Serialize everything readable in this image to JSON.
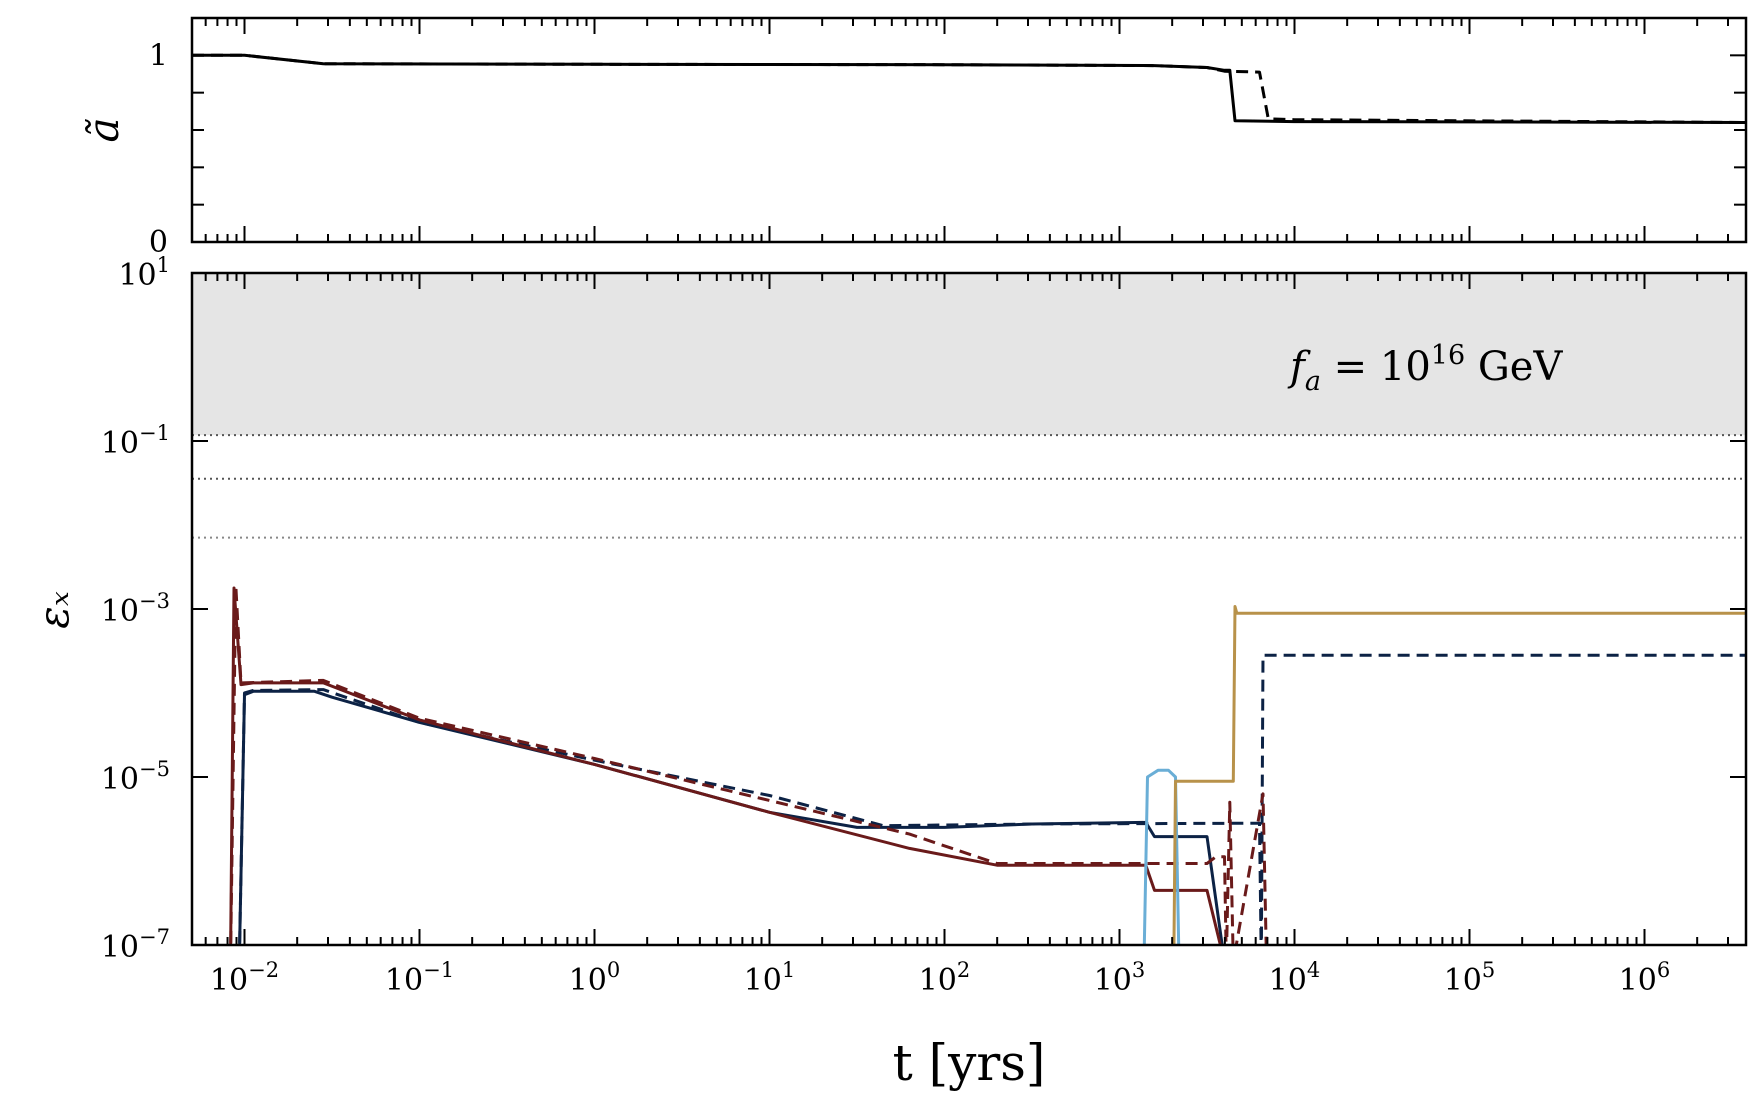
{
  "chart_data": [
    {
      "id": "top",
      "type": "line",
      "ylabel": "ã",
      "xscale": "log",
      "xlim_exp": [
        -2.3,
        6.58
      ],
      "ylim": [
        0,
        1.2
      ],
      "yticks": [
        {
          "value": 0,
          "label": "0"
        },
        {
          "value": 1,
          "label": "1"
        }
      ],
      "series": [
        {
          "name": "a-solid",
          "color": "#000000",
          "dash": "solid",
          "points": [
            [
              -2.3,
              1.0
            ],
            [
              -2.0,
              1.0
            ],
            [
              -1.55,
              0.955
            ],
            [
              0,
              0.952
            ],
            [
              2,
              0.95
            ],
            [
              3.2,
              0.945
            ],
            [
              3.5,
              0.935
            ],
            [
              3.6,
              0.92
            ],
            [
              3.63,
              0.92
            ],
            [
              3.66,
              0.65
            ],
            [
              4,
              0.645
            ],
            [
              6.58,
              0.64
            ]
          ]
        },
        {
          "name": "a-dashed",
          "color": "#000000",
          "dash": "dashed",
          "points": [
            [
              -2.3,
              1.0
            ],
            [
              -2.0,
              1.0
            ],
            [
              -1.55,
              0.955
            ],
            [
              0,
              0.952
            ],
            [
              2,
              0.95
            ],
            [
              3.2,
              0.945
            ],
            [
              3.5,
              0.935
            ],
            [
              3.6,
              0.915
            ],
            [
              3.8,
              0.91
            ],
            [
              3.85,
              0.66
            ],
            [
              4,
              0.655
            ],
            [
              6.58,
              0.64
            ]
          ]
        }
      ]
    },
    {
      "id": "bottom",
      "type": "line",
      "ylabel": "εₓ",
      "xlabel": "t [yrs]",
      "xscale": "log",
      "yscale": "log",
      "xlim_exp": [
        -2.3,
        6.58
      ],
      "ylim_exp": [
        -7,
        1
      ],
      "xticks": [
        {
          "exp": -2,
          "base": "10",
          "sup": "−2"
        },
        {
          "exp": -1,
          "base": "10",
          "sup": "−1"
        },
        {
          "exp": 0,
          "base": "10",
          "sup": "0"
        },
        {
          "exp": 1,
          "base": "10",
          "sup": "1"
        },
        {
          "exp": 2,
          "base": "10",
          "sup": "2"
        },
        {
          "exp": 3,
          "base": "10",
          "sup": "3"
        },
        {
          "exp": 4,
          "base": "10",
          "sup": "4"
        },
        {
          "exp": 5,
          "base": "10",
          "sup": "5"
        },
        {
          "exp": 6,
          "base": "10",
          "sup": "6"
        }
      ],
      "yticks": [
        {
          "exp": 1,
          "base": "10",
          "sup": "1"
        },
        {
          "exp": -1,
          "base": "10",
          "sup": "−1"
        },
        {
          "exp": -3,
          "base": "10",
          "sup": "−3"
        },
        {
          "exp": -5,
          "base": "10",
          "sup": "−5"
        },
        {
          "exp": -7,
          "base": "10",
          "sup": "−7"
        }
      ],
      "shaded_region": {
        "from_exp": -0.93,
        "to_exp": 1,
        "color": "#e5e5e5"
      },
      "hlines": [
        {
          "exp": -0.93,
          "color": "#555555",
          "dash": "dotted"
        },
        {
          "exp": -1.45,
          "color": "#555555",
          "dash": "dotted"
        },
        {
          "exp": -2.15,
          "color": "#888888",
          "dash": "dotted"
        }
      ],
      "annotation": {
        "f": "f",
        "sub": "a",
        "mid": " = 10",
        "sup": "16",
        "unit": " GeV"
      },
      "series": [
        {
          "name": "navy-solid",
          "color": "#0c2245",
          "dash": "solid",
          "points": [
            [
              -2.03,
              -7.2
            ],
            [
              -2.0,
              -4.02
            ],
            [
              -1.95,
              -3.98
            ],
            [
              -1.6,
              -3.98
            ],
            [
              -1.5,
              -4.05
            ],
            [
              -1.0,
              -4.35
            ],
            [
              0,
              -4.85
            ],
            [
              1,
              -5.42
            ],
            [
              1.5,
              -5.6
            ],
            [
              2,
              -5.6
            ],
            [
              2.5,
              -5.56
            ],
            [
              3.15,
              -5.54
            ],
            [
              3.2,
              -5.71
            ],
            [
              3.5,
              -5.71
            ],
            [
              3.6,
              -7.2
            ]
          ]
        },
        {
          "name": "navy-dashed",
          "color": "#0c2245",
          "dash": "dashed",
          "points": [
            [
              -2.03,
              -7.2
            ],
            [
              -2.0,
              -4.0
            ],
            [
              -1.95,
              -3.97
            ],
            [
              -1.55,
              -3.96
            ],
            [
              -1.0,
              -4.35
            ],
            [
              0,
              -4.8
            ],
            [
              1,
              -5.22
            ],
            [
              1.65,
              -5.58
            ],
            [
              2.5,
              -5.56
            ],
            [
              3.8,
              -5.55
            ],
            [
              3.81,
              -7.2
            ],
            [
              3.82,
              -3.55
            ],
            [
              6.58,
              -3.55
            ]
          ]
        },
        {
          "name": "maroon-solid",
          "color": "#6a1a1a",
          "dash": "solid",
          "points": [
            [
              -2.08,
              -7.2
            ],
            [
              -2.06,
              -2.75
            ],
            [
              -2.02,
              -3.9
            ],
            [
              -1.95,
              -3.88
            ],
            [
              -1.55,
              -3.88
            ],
            [
              -1.0,
              -4.32
            ],
            [
              0,
              -4.85
            ],
            [
              1,
              -5.42
            ],
            [
              1.8,
              -5.85
            ],
            [
              2.3,
              -6.05
            ],
            [
              3.15,
              -6.05
            ],
            [
              3.2,
              -6.35
            ],
            [
              3.5,
              -6.35
            ],
            [
              3.6,
              -7.2
            ]
          ]
        },
        {
          "name": "maroon-dashed",
          "color": "#6a1a1a",
          "dash": "dashed",
          "points": [
            [
              -2.08,
              -7.2
            ],
            [
              -2.05,
              -2.72
            ],
            [
              -2.02,
              -3.88
            ],
            [
              -1.55,
              -3.85
            ],
            [
              -1.0,
              -4.3
            ],
            [
              0,
              -4.78
            ],
            [
              1,
              -5.28
            ],
            [
              1.8,
              -5.68
            ],
            [
              2.3,
              -6.03
            ],
            [
              3.5,
              -6.03
            ],
            [
              3.55,
              -5.95
            ],
            [
              3.6,
              -5.95
            ],
            [
              3.61,
              -7.2
            ],
            [
              3.63,
              -5.3
            ],
            [
              3.65,
              -7.2
            ],
            [
              3.82,
              -5.2
            ],
            [
              3.84,
              -7.2
            ]
          ]
        },
        {
          "name": "lightblue-solid",
          "color": "#6aaed6",
          "dash": "solid",
          "points": [
            [
              3.14,
              -7.2
            ],
            [
              3.16,
              -5.0
            ],
            [
              3.22,
              -4.92
            ],
            [
              3.28,
              -4.92
            ],
            [
              3.32,
              -5.0
            ],
            [
              3.34,
              -7.2
            ]
          ]
        },
        {
          "name": "gold-solid",
          "color": "#b8924a",
          "dash": "solid",
          "points": [
            [
              3.31,
              -7.2
            ],
            [
              3.32,
              -5.05
            ],
            [
              3.65,
              -5.05
            ],
            [
              3.66,
              -2.97
            ],
            [
              3.67,
              -3.05
            ],
            [
              6.58,
              -3.05
            ]
          ]
        }
      ]
    }
  ]
}
